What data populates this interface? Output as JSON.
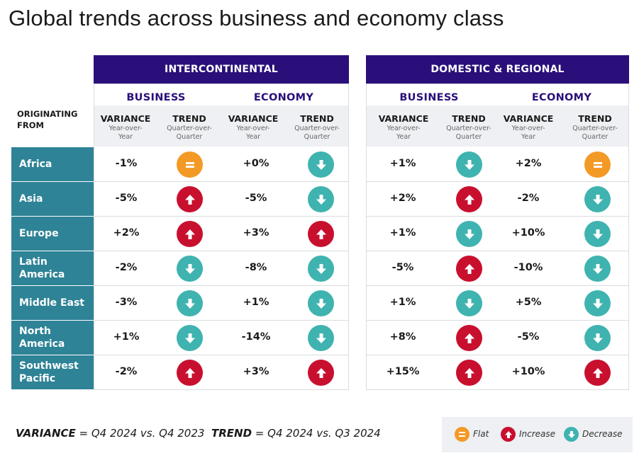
{
  "title": "Global trends across business and economy class",
  "origin_label_1": "ORIGINATING",
  "origin_label_2": "FROM",
  "sections": [
    {
      "banner": "INTERCONTINENTAL",
      "business": "BUSINESS",
      "economy": "ECONOMY"
    },
    {
      "banner": "DOMESTIC & REGIONAL",
      "business": "BUSINESS",
      "economy": "ECONOMY"
    }
  ],
  "col_headers": {
    "variance": "VARIANCE",
    "variance_sub1": "Year-over-",
    "variance_sub2": "Year",
    "trend": "TREND",
    "trend_sub1": "Quarter-over-",
    "trend_sub2": "Quarter"
  },
  "regions": [
    {
      "name_1": "Africa",
      "name_2": "",
      "ic_bus_var": "-1%",
      "ic_bus_trend": "flat",
      "ic_eco_var": "+0%",
      "ic_eco_trend": "decrease",
      "dr_bus_var": "+1%",
      "dr_bus_trend": "decrease",
      "dr_eco_var": "+2%",
      "dr_eco_trend": "flat"
    },
    {
      "name_1": "Asia",
      "name_2": "",
      "ic_bus_var": "-5%",
      "ic_bus_trend": "increase",
      "ic_eco_var": "-5%",
      "ic_eco_trend": "decrease",
      "dr_bus_var": "+2%",
      "dr_bus_trend": "increase",
      "dr_eco_var": "-2%",
      "dr_eco_trend": "decrease"
    },
    {
      "name_1": "Europe",
      "name_2": "",
      "ic_bus_var": "+2%",
      "ic_bus_trend": "increase",
      "ic_eco_var": "+3%",
      "ic_eco_trend": "increase",
      "dr_bus_var": "+1%",
      "dr_bus_trend": "decrease",
      "dr_eco_var": "+10%",
      "dr_eco_trend": "decrease"
    },
    {
      "name_1": "Latin",
      "name_2": "America",
      "ic_bus_var": "-2%",
      "ic_bus_trend": "decrease",
      "ic_eco_var": "-8%",
      "ic_eco_trend": "decrease",
      "dr_bus_var": "-5%",
      "dr_bus_trend": "increase",
      "dr_eco_var": "-10%",
      "dr_eco_trend": "decrease"
    },
    {
      "name_1": "Middle East",
      "name_2": "",
      "ic_bus_var": "-3%",
      "ic_bus_trend": "decrease",
      "ic_eco_var": "+1%",
      "ic_eco_trend": "decrease",
      "dr_bus_var": "+1%",
      "dr_bus_trend": "decrease",
      "dr_eco_var": "+5%",
      "dr_eco_trend": "decrease"
    },
    {
      "name_1": "North",
      "name_2": "America",
      "ic_bus_var": "+1%",
      "ic_bus_trend": "decrease",
      "ic_eco_var": "-14%",
      "ic_eco_trend": "decrease",
      "dr_bus_var": "+8%",
      "dr_bus_trend": "increase",
      "dr_eco_var": "-5%",
      "dr_eco_trend": "decrease"
    },
    {
      "name_1": "Southwest",
      "name_2": "Pacific",
      "ic_bus_var": "-2%",
      "ic_bus_trend": "increase",
      "ic_eco_var": "+3%",
      "ic_eco_trend": "increase",
      "dr_bus_var": "+15%",
      "dr_bus_trend": "increase",
      "dr_eco_var": "+10%",
      "dr_eco_trend": "increase"
    }
  ],
  "footnote": {
    "variance_label": "VARIANCE",
    "variance_text": " = Q4 2024 vs. Q4 2023",
    "trend_label": "TREND",
    "trend_text": " = Q4 2024 vs. Q3 2024"
  },
  "legend": {
    "flat": "Flat",
    "increase": "Increase",
    "decrease": "Decrease"
  },
  "colors": {
    "banner": "#2a0f7a",
    "region": "#2e8396",
    "flat": "#f39a26",
    "increase": "#c8102e",
    "decrease": "#3fb3b0"
  }
}
